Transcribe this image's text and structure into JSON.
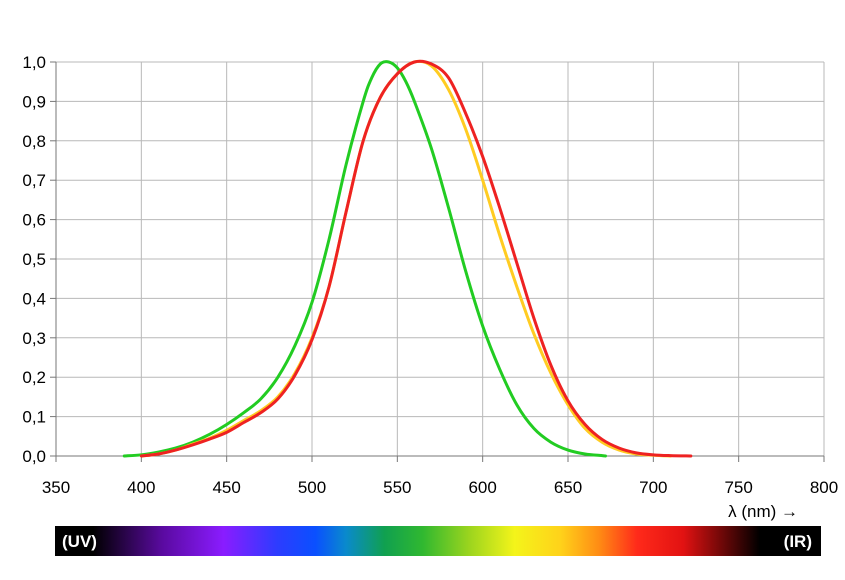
{
  "chart_data": {
    "type": "line",
    "title": "",
    "xlabel": "λ (nm) →",
    "ylabel": "",
    "xlim": [
      350,
      800
    ],
    "ylim": [
      0,
      1.0
    ],
    "grid": true,
    "legend": "none",
    "x_ticks": [
      {
        "value": 350,
        "label": "350"
      },
      {
        "value": 400,
        "label": "400"
      },
      {
        "value": 450,
        "label": "450"
      },
      {
        "value": 500,
        "label": "500"
      },
      {
        "value": 550,
        "label": "550"
      },
      {
        "value": 600,
        "label": "600"
      },
      {
        "value": 650,
        "label": "650"
      },
      {
        "value": 700,
        "label": "700"
      },
      {
        "value": 750,
        "label": "750"
      },
      {
        "value": 800,
        "label": "800"
      }
    ],
    "y_ticks": [
      {
        "value": 0.0,
        "label": "0,0"
      },
      {
        "value": 0.1,
        "label": "0,1"
      },
      {
        "value": 0.2,
        "label": "0,2"
      },
      {
        "value": 0.3,
        "label": "0,3"
      },
      {
        "value": 0.4,
        "label": "0,4"
      },
      {
        "value": 0.5,
        "label": "0,5"
      },
      {
        "value": 0.6,
        "label": "0,6"
      },
      {
        "value": 0.7,
        "label": "0,7"
      },
      {
        "value": 0.8,
        "label": "0,8"
      },
      {
        "value": 0.9,
        "label": "0,9"
      },
      {
        "value": 1.0,
        "label": "1,0"
      }
    ],
    "series": [
      {
        "color": "#22cc22",
        "points": [
          [
            390,
            0.0
          ],
          [
            400,
            0.003
          ],
          [
            410,
            0.01
          ],
          [
            420,
            0.02
          ],
          [
            430,
            0.035
          ],
          [
            440,
            0.055
          ],
          [
            450,
            0.08
          ],
          [
            460,
            0.11
          ],
          [
            470,
            0.145
          ],
          [
            480,
            0.2
          ],
          [
            490,
            0.28
          ],
          [
            500,
            0.39
          ],
          [
            510,
            0.55
          ],
          [
            520,
            0.74
          ],
          [
            530,
            0.9
          ],
          [
            535,
            0.96
          ],
          [
            540,
            0.995
          ],
          [
            545,
            1.0
          ],
          [
            550,
            0.985
          ],
          [
            555,
            0.95
          ],
          [
            560,
            0.9
          ],
          [
            570,
            0.78
          ],
          [
            580,
            0.63
          ],
          [
            590,
            0.47
          ],
          [
            600,
            0.33
          ],
          [
            610,
            0.22
          ],
          [
            620,
            0.13
          ],
          [
            630,
            0.07
          ],
          [
            640,
            0.035
          ],
          [
            650,
            0.015
          ],
          [
            660,
            0.005
          ],
          [
            670,
            0.001
          ],
          [
            672,
            0.0
          ]
        ]
      },
      {
        "color": "#ffcc22",
        "points": [
          [
            400,
            0.0
          ],
          [
            410,
            0.005
          ],
          [
            420,
            0.015
          ],
          [
            430,
            0.03
          ],
          [
            440,
            0.045
          ],
          [
            450,
            0.065
          ],
          [
            460,
            0.09
          ],
          [
            470,
            0.115
          ],
          [
            480,
            0.15
          ],
          [
            490,
            0.21
          ],
          [
            500,
            0.3
          ],
          [
            510,
            0.43
          ],
          [
            520,
            0.62
          ],
          [
            530,
            0.8
          ],
          [
            540,
            0.91
          ],
          [
            550,
            0.97
          ],
          [
            560,
            1.0
          ],
          [
            570,
            0.99
          ],
          [
            580,
            0.93
          ],
          [
            590,
            0.83
          ],
          [
            600,
            0.7
          ],
          [
            610,
            0.56
          ],
          [
            620,
            0.43
          ],
          [
            630,
            0.31
          ],
          [
            640,
            0.21
          ],
          [
            650,
            0.13
          ],
          [
            660,
            0.07
          ],
          [
            670,
            0.035
          ],
          [
            680,
            0.015
          ],
          [
            690,
            0.005
          ],
          [
            700,
            0.002
          ],
          [
            710,
            0.0
          ]
        ]
      },
      {
        "color": "#ee2222",
        "points": [
          [
            400,
            0.0
          ],
          [
            410,
            0.005
          ],
          [
            420,
            0.015
          ],
          [
            430,
            0.028
          ],
          [
            440,
            0.043
          ],
          [
            450,
            0.06
          ],
          [
            460,
            0.085
          ],
          [
            470,
            0.11
          ],
          [
            480,
            0.145
          ],
          [
            490,
            0.205
          ],
          [
            500,
            0.295
          ],
          [
            510,
            0.43
          ],
          [
            520,
            0.62
          ],
          [
            530,
            0.8
          ],
          [
            540,
            0.91
          ],
          [
            550,
            0.97
          ],
          [
            560,
            1.0
          ],
          [
            570,
            0.995
          ],
          [
            580,
            0.96
          ],
          [
            590,
            0.87
          ],
          [
            600,
            0.76
          ],
          [
            610,
            0.63
          ],
          [
            620,
            0.49
          ],
          [
            630,
            0.35
          ],
          [
            640,
            0.23
          ],
          [
            650,
            0.14
          ],
          [
            660,
            0.08
          ],
          [
            670,
            0.042
          ],
          [
            680,
            0.02
          ],
          [
            690,
            0.008
          ],
          [
            700,
            0.003
          ],
          [
            710,
            0.001
          ],
          [
            722,
            0.0
          ]
        ]
      }
    ]
  },
  "spectrum_bar": {
    "left_label": "(UV)",
    "right_label": "(IR)"
  }
}
